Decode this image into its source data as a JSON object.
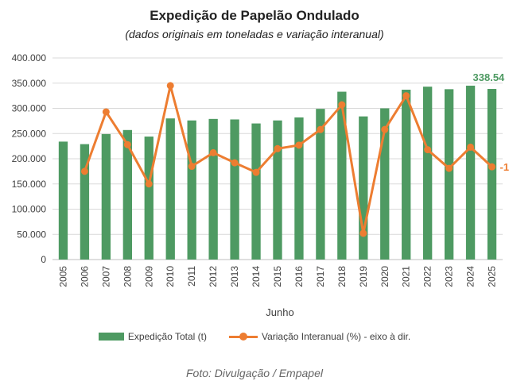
{
  "chart_data": {
    "type": "bar",
    "title": "Expedição de Papelão Ondulado",
    "subtitle": "(dados originais em toneladas e variação interanual)",
    "xlabel": "Junho",
    "categories": [
      "2005",
      "2006",
      "2007",
      "2008",
      "2009",
      "2010",
      "2011",
      "2012",
      "2013",
      "2014",
      "2015",
      "2016",
      "2017",
      "2018",
      "2019",
      "2020",
      "2021",
      "2022",
      "2023",
      "2024",
      "2025"
    ],
    "ylim": [
      0,
      400000
    ],
    "yticks": [
      "0",
      "50.000",
      "100.000",
      "150.000",
      "200.000",
      "250.000",
      "300.000",
      "350.000",
      "400.000"
    ],
    "grid": true,
    "legend_position": "bottom",
    "series": [
      {
        "name": "Expedição Total (t)",
        "type": "bar",
        "color": "#4e9a62",
        "values": [
          234000,
          229000,
          249000,
          257000,
          244000,
          280000,
          276000,
          279000,
          278000,
          270000,
          276000,
          282000,
          299000,
          333000,
          284000,
          300000,
          337000,
          343000,
          338000,
          345000,
          338540
        ]
      },
      {
        "name": "Variação Interanual (%) - eixo à dir.",
        "type": "line",
        "axis": "right",
        "color": "#ed7d31",
        "values": [
          null,
          175000,
          293000,
          228000,
          150000,
          345000,
          185000,
          212000,
          192000,
          173000,
          220000,
          227000,
          258000,
          307000,
          52000,
          258000,
          325000,
          218000,
          181000,
          223000,
          184000
        ]
      }
    ],
    "annotations": [
      {
        "text": "338.54",
        "category": "2025",
        "series": "Expedição Total (t)",
        "color": "#4e9a62"
      },
      {
        "text": "-1",
        "category": "2025",
        "series": "Variação Interanual (%) - eixo à dir.",
        "color": "#ed7d31"
      }
    ]
  },
  "credit": "Foto: Divulgação / Empapel"
}
